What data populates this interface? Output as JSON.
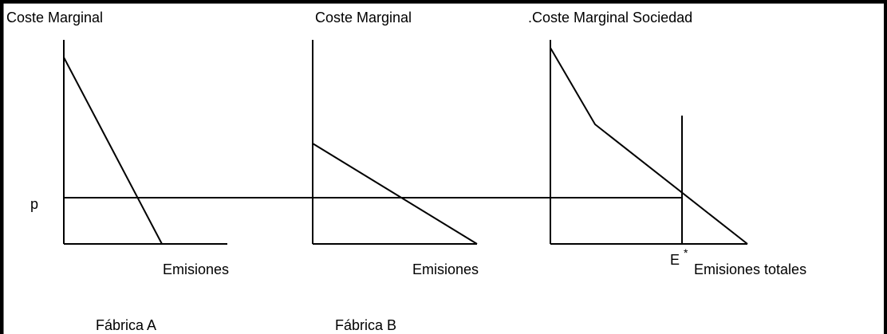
{
  "panels": [
    {
      "y_label": "Coste Marginal",
      "x_label": "Emisiones",
      "caption": "Fábrica A"
    },
    {
      "y_label": "Coste Marginal",
      "x_label": "Emisiones",
      "caption": "Fábrica B"
    },
    {
      "y_label": ".Coste Marginal Sociedad",
      "x_label": "Emisiones totales",
      "marker": "E",
      "marker_sup": "*"
    }
  ],
  "price_label": "p"
}
